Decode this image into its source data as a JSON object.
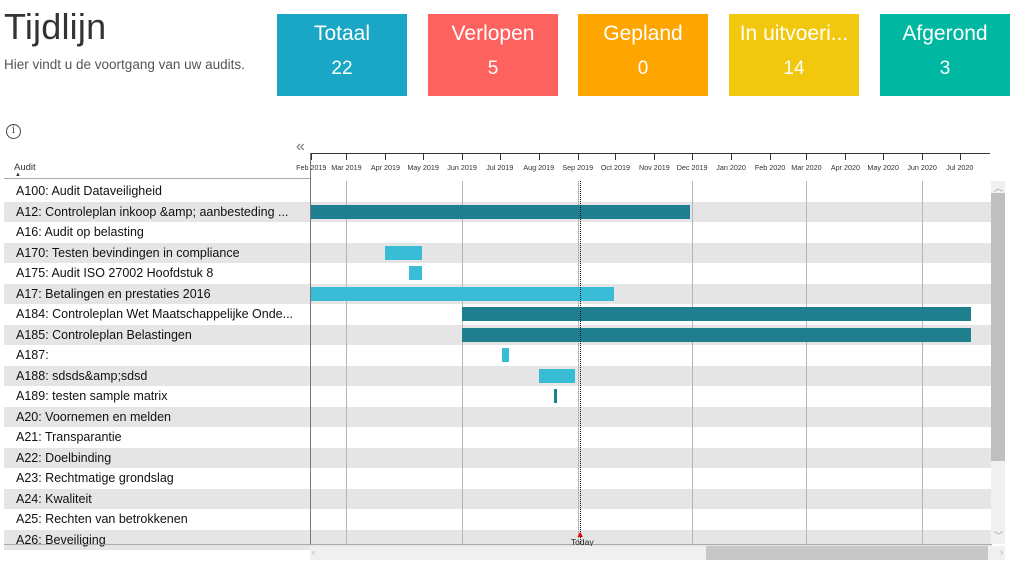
{
  "header": {
    "title": "Tijdlijn",
    "subtitle": "Hier vindt u de voortgang van uw audits."
  },
  "tiles": [
    {
      "label": "Totaal",
      "value": "22",
      "color": "#1aa7c6"
    },
    {
      "label": "Verlopen",
      "value": "5",
      "color": "#fd625e"
    },
    {
      "label": "Gepland",
      "value": "0",
      "color": "#fea500"
    },
    {
      "label": "In uitvoeri...",
      "value": "14",
      "color": "#f2c80f"
    },
    {
      "label": "Afgerond",
      "value": "3",
      "color": "#00b8a2"
    }
  ],
  "toolbar": {
    "info_icon": "info-icon",
    "collapse_icon": "double-chevron-left-icon"
  },
  "table": {
    "column_header": "Audit",
    "rows": [
      "A100: Audit Dataveiligheid",
      "A12: Controleplan inkoop &amp; aanbesteding ...",
      "A16: Audit op belasting",
      "A170: Testen bevindingen in compliance",
      "A175: Audit ISO 27002 Hoofdstuk 8",
      "A17: Betalingen en prestaties 2016",
      "A184: Controleplan Wet Maatschappelijke Onde...",
      "A185: Controleplan Belastingen",
      "A187:",
      "A188: sdsds&amp;sdsd",
      "A189: testen sample matrix",
      "A20: Voornemen en melden",
      "A21: Transparantie",
      "A22: Doelbinding",
      "A23: Rechtmatige grondslag",
      "A24: Kwaliteit",
      "A25: Rechten van betrokkenen",
      "A26: Beveiliging"
    ]
  },
  "chart_data": {
    "type": "gantt",
    "x_ticks": [
      "Feb 2019",
      "Mar 2019",
      "Apr 2019",
      "May 2019",
      "Jun 2019",
      "Jul 2019",
      "Aug 2019",
      "Sep 2019",
      "Oct 2019",
      "Nov 2019",
      "Dec 2019",
      "Jan 2020",
      "Feb 2020",
      "Mar 2020",
      "Apr 2020",
      "May 2020",
      "Jun 2020",
      "Jul 2020"
    ],
    "x_range": [
      "2019-01-31",
      "2020-07-25"
    ],
    "today": "2019-09-03",
    "today_label": "Today",
    "bars": [
      {
        "row": 1,
        "start": "2019-01-31",
        "end": "2019-11-29",
        "color": "#1f7f8f"
      },
      {
        "row": 3,
        "start": "2019-04-01",
        "end": "2019-04-30",
        "color": "#39bcd6"
      },
      {
        "row": 4,
        "start": "2019-04-20",
        "end": "2019-04-30",
        "color": "#39bcd6"
      },
      {
        "row": 5,
        "start": "2019-01-31",
        "end": "2019-09-30",
        "color": "#39bcd6"
      },
      {
        "row": 6,
        "start": "2019-06-01",
        "end": "2020-07-10",
        "color": "#1f7f8f"
      },
      {
        "row": 7,
        "start": "2019-06-01",
        "end": "2020-07-10",
        "color": "#1f7f8f"
      },
      {
        "row": 8,
        "start": "2019-07-03",
        "end": "2019-07-08",
        "color": "#39bcd6"
      },
      {
        "row": 9,
        "start": "2019-08-01",
        "end": "2019-08-30",
        "color": "#39bcd6"
      },
      {
        "row": 10,
        "start": "2019-08-13",
        "end": "2019-08-15",
        "color": "#1f7f8f"
      }
    ]
  }
}
